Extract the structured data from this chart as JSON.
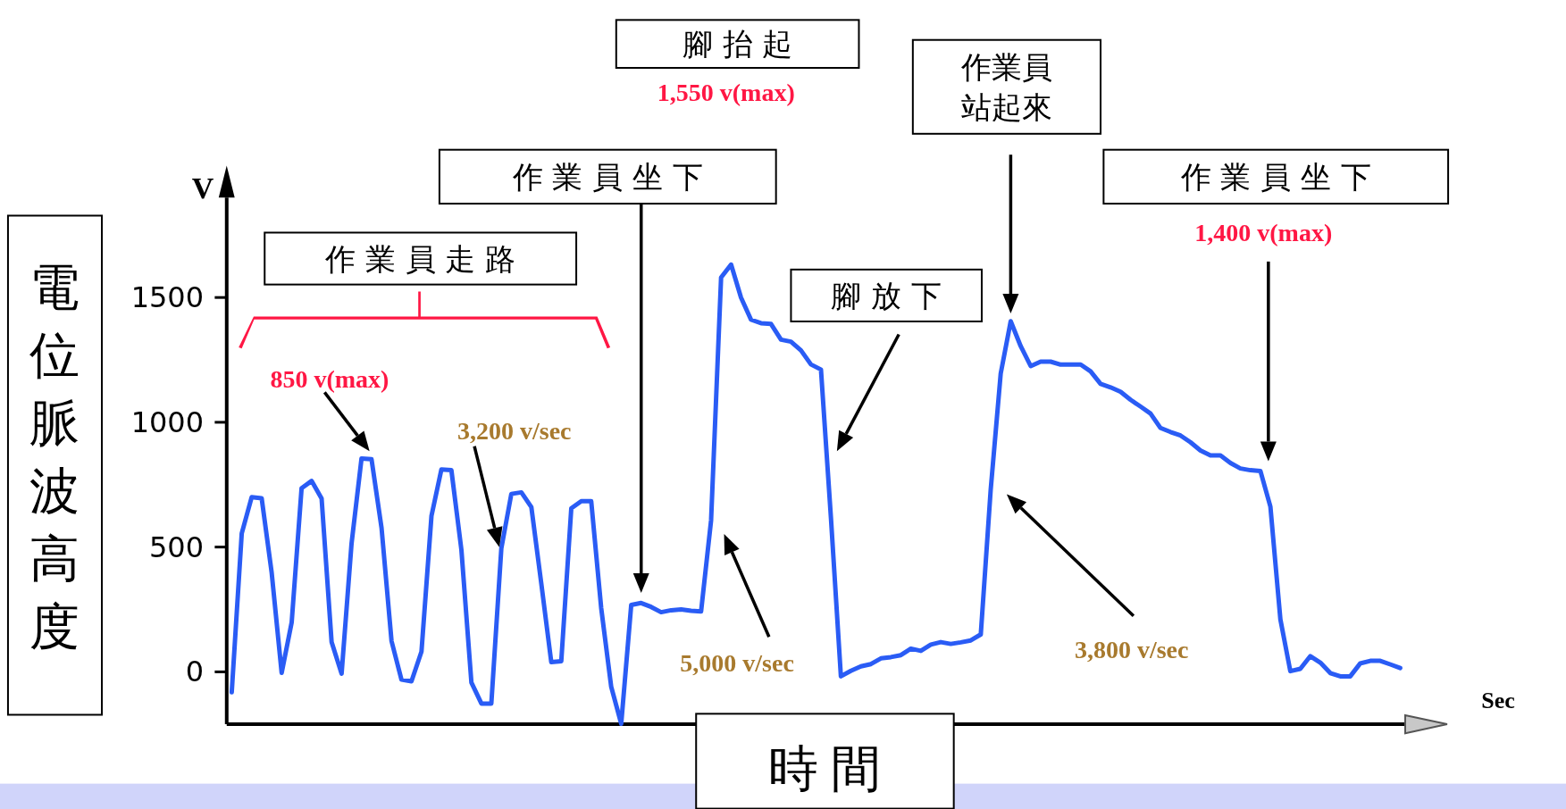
{
  "chart_data": {
    "type": "line",
    "ylabel": "電位脈波高度",
    "xlabel": "時 間",
    "annotations": [
      "V",
      "Sec",
      "作 業 員 走 路",
      "850 v(max)",
      "3,200 v/sec",
      "作 業 員 坐 下",
      "腳 抬 起",
      "1,550 v(max)",
      "5,000 v/sec",
      "腳 放 下",
      "作業員站起來",
      "作 業 員 坐 下",
      "1,400 v(max)",
      "3,800 v/sec"
    ],
    "categories": [
      null,
      null,
      null,
      null,
      null,
      null,
      null,
      null,
      null,
      null,
      null,
      null,
      null,
      null,
      null,
      null,
      null,
      null,
      null,
      null,
      null,
      null,
      null,
      null,
      null,
      null,
      null,
      null,
      null,
      null,
      null,
      null,
      null,
      null,
      null,
      null,
      null,
      null,
      null,
      null,
      null,
      null,
      null,
      null,
      null,
      null,
      null,
      null,
      null,
      null,
      null,
      null,
      null,
      null,
      null,
      null,
      null,
      null,
      null,
      null,
      null,
      null,
      null,
      null,
      null,
      null,
      null,
      null,
      null,
      null,
      null,
      null,
      null,
      null,
      null,
      null,
      null,
      null,
      null,
      null,
      null,
      null,
      null,
      null,
      null,
      null,
      null,
      null,
      null,
      null,
      null,
      null,
      null,
      null,
      null,
      null,
      null,
      null,
      null,
      null,
      null,
      null,
      null,
      null,
      null,
      null,
      null,
      null,
      null,
      null,
      null,
      null,
      null,
      null,
      null,
      null,
      null,
      null
    ],
    "series": [
      {
        "color": "#2a5cf5",
        "values": [
          -82,
          555,
          700,
          696,
          398,
          -4,
          198,
          736,
          765,
          695,
          120,
          -7,
          513,
          855,
          852,
          577,
          123,
          -31,
          -38,
          81,
          625,
          811,
          808,
          489,
          -43,
          -127,
          -127,
          495,
          713,
          719,
          660,
          355,
          39,
          43,
          655,
          684,
          684,
          255,
          -60,
          -208,
          268,
          276,
          260,
          239,
          247,
          250,
          245,
          242,
          607,
          1580,
          1632,
          1500,
          1411,
          1397,
          1394,
          1331,
          1323,
          1288,
          1232,
          1211,
          615,
          -18,
          4,
          22,
          31,
          54,
          59,
          67,
          93,
          84,
          109,
          119,
          112,
          118,
          126,
          150,
          730,
          1195,
          1405,
          1305,
          1225,
          1243,
          1243,
          1231,
          1231,
          1231,
          1204,
          1154,
          1140,
          1122,
          1090,
          1063,
          1035,
          977,
          961,
          947,
          920,
          887,
          867,
          867,
          837,
          815,
          808,
          805,
          662,
          210,
          3,
          12,
          63,
          37,
          -5,
          -18,
          -18,
          34,
          44,
          44,
          30,
          15
        ]
      }
    ],
    "ylim": [
      -210,
      1900
    ],
    "yticks": [
      0,
      500,
      1000,
      1500
    ],
    "tick_labels": "y",
    "grid": false
  }
}
